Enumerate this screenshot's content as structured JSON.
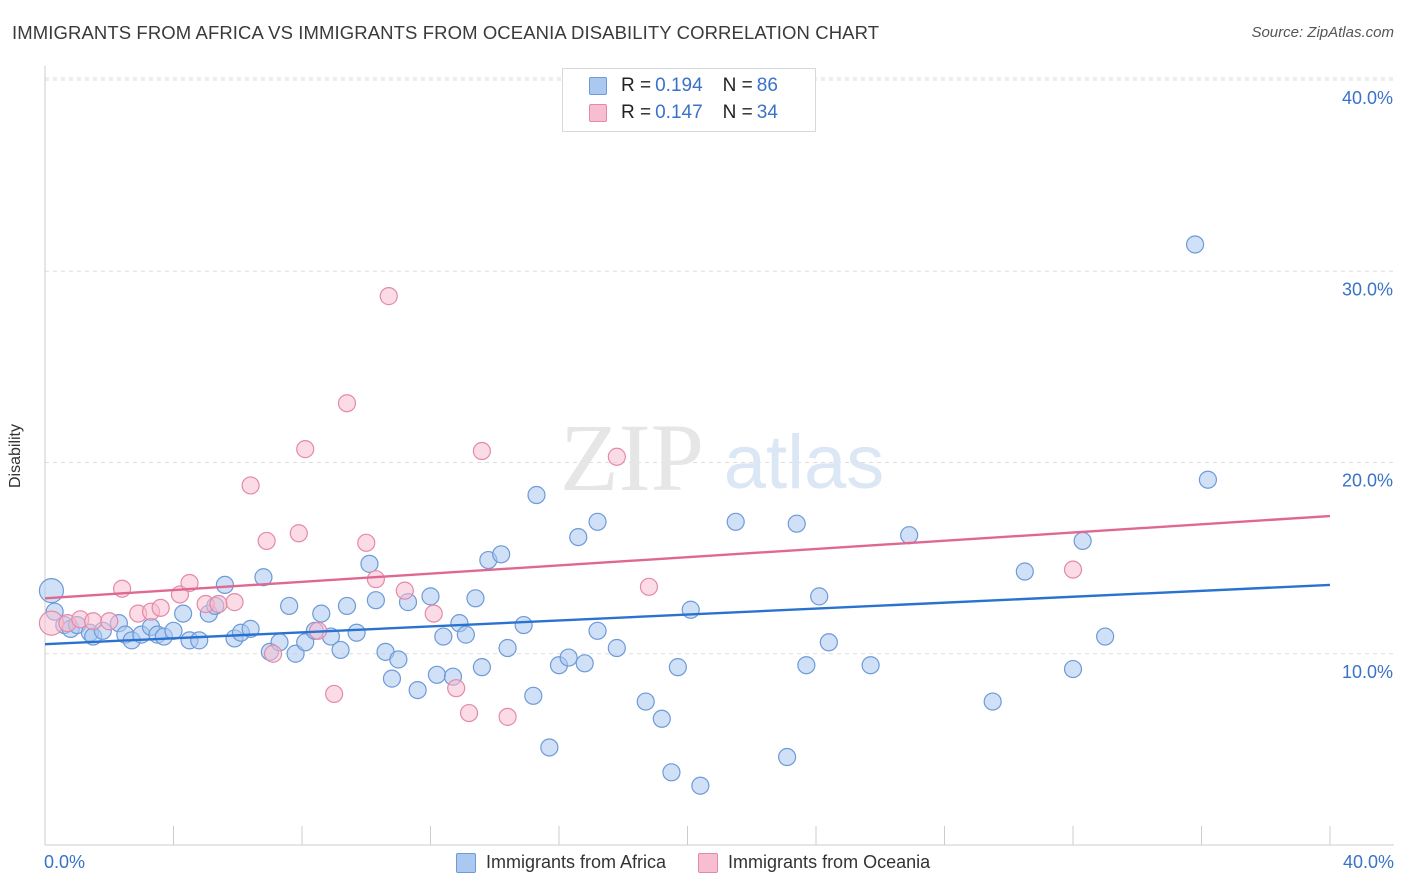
{
  "header": {
    "title": "IMMIGRANTS FROM AFRICA VS IMMIGRANTS FROM OCEANIA DISABILITY CORRELATION CHART",
    "source": "Source: ZipAtlas.com"
  },
  "watermark": {
    "zip": "ZIP",
    "atlas": "atlas"
  },
  "colors": {
    "africa_fill": "#aac8f0",
    "africa_stroke": "#6d9ad8",
    "africa_line": "#2a72d0",
    "oceania_fill": "#f7bdd0",
    "oceania_stroke": "#e48aa8",
    "oceania_line": "#e06890",
    "axis_label": "#3a72c8",
    "grid": "#dddddd"
  },
  "legend_top": [
    {
      "r_label": "R =",
      "r_value": "0.194",
      "n_label": "N =",
      "n_value": "86"
    },
    {
      "r_label": "R =",
      "r_value": "0.147",
      "n_label": "N =",
      "n_value": "34"
    }
  ],
  "legend_bottom": [
    "Immigrants from Africa",
    "Immigrants from Oceania"
  ],
  "chart_data": {
    "type": "scatter",
    "title": "IMMIGRANTS FROM AFRICA VS IMMIGRANTS FROM OCEANIA DISABILITY CORRELATION CHART",
    "ylabel": "Disability",
    "xlabel": "",
    "xlim": [
      0,
      40
    ],
    "ylim": [
      0,
      40.9
    ],
    "x_tick_labels": [
      "0.0%",
      "40.0%"
    ],
    "y_ticks": [
      10,
      20,
      30,
      40
    ],
    "y_tick_labels": [
      "10.0%",
      "20.0%",
      "30.0%",
      "40.0%"
    ],
    "grid": true,
    "legend_position": "top-center",
    "series": [
      {
        "name": "Immigrants from Africa",
        "r": 0.194,
        "n": 86,
        "trend": [
          [
            0,
            10.5
          ],
          [
            40,
            13.6
          ]
        ],
        "points": [
          [
            0.2,
            13.3
          ],
          [
            0.3,
            12.2
          ],
          [
            0.6,
            11.5
          ],
          [
            0.8,
            11.3
          ],
          [
            1.0,
            11.5
          ],
          [
            1.4,
            11.1
          ],
          [
            1.5,
            10.9
          ],
          [
            1.8,
            11.2
          ],
          [
            2.3,
            11.6
          ],
          [
            2.5,
            11.0
          ],
          [
            2.7,
            10.7
          ],
          [
            3.0,
            11.0
          ],
          [
            3.3,
            11.4
          ],
          [
            3.5,
            11.0
          ],
          [
            3.7,
            10.9
          ],
          [
            4.0,
            11.2
          ],
          [
            4.3,
            12.1
          ],
          [
            4.5,
            10.7
          ],
          [
            4.8,
            10.7
          ],
          [
            5.1,
            12.1
          ],
          [
            5.3,
            12.5
          ],
          [
            5.6,
            13.6
          ],
          [
            5.9,
            10.8
          ],
          [
            6.1,
            11.1
          ],
          [
            6.4,
            11.3
          ],
          [
            6.8,
            14.0
          ],
          [
            7.0,
            10.1
          ],
          [
            7.3,
            10.6
          ],
          [
            7.6,
            12.5
          ],
          [
            7.8,
            10.0
          ],
          [
            8.1,
            10.6
          ],
          [
            8.4,
            11.2
          ],
          [
            8.6,
            12.1
          ],
          [
            8.9,
            10.9
          ],
          [
            9.2,
            10.2
          ],
          [
            9.4,
            12.5
          ],
          [
            9.7,
            11.1
          ],
          [
            10.1,
            14.7
          ],
          [
            10.3,
            12.8
          ],
          [
            10.6,
            10.1
          ],
          [
            10.8,
            8.7
          ],
          [
            11.0,
            9.7
          ],
          [
            11.3,
            12.7
          ],
          [
            11.6,
            8.1
          ],
          [
            12.0,
            13.0
          ],
          [
            12.2,
            8.9
          ],
          [
            12.4,
            10.9
          ],
          [
            12.7,
            8.8
          ],
          [
            12.9,
            11.6
          ],
          [
            13.1,
            11.0
          ],
          [
            13.4,
            12.9
          ],
          [
            13.6,
            9.3
          ],
          [
            13.8,
            14.9
          ],
          [
            14.2,
            15.2
          ],
          [
            14.4,
            10.3
          ],
          [
            14.9,
            11.5
          ],
          [
            15.2,
            7.8
          ],
          [
            15.3,
            18.3
          ],
          [
            15.7,
            5.1
          ],
          [
            16.0,
            9.4
          ],
          [
            16.3,
            9.8
          ],
          [
            16.6,
            16.1
          ],
          [
            16.8,
            9.5
          ],
          [
            17.2,
            11.2
          ],
          [
            17.2,
            16.9
          ],
          [
            17.8,
            10.3
          ],
          [
            18.7,
            7.5
          ],
          [
            19.2,
            6.6
          ],
          [
            19.5,
            3.8
          ],
          [
            19.7,
            9.3
          ],
          [
            20.1,
            12.3
          ],
          [
            20.4,
            3.1
          ],
          [
            21.5,
            16.9
          ],
          [
            23.1,
            4.6
          ],
          [
            23.4,
            16.8
          ],
          [
            23.7,
            9.4
          ],
          [
            24.1,
            13.0
          ],
          [
            24.4,
            10.6
          ],
          [
            25.7,
            9.4
          ],
          [
            26.9,
            16.2
          ],
          [
            29.5,
            7.5
          ],
          [
            30.5,
            14.3
          ],
          [
            32.0,
            9.2
          ],
          [
            32.3,
            15.9
          ],
          [
            33.0,
            10.9
          ],
          [
            35.8,
            31.4
          ],
          [
            36.2,
            19.1
          ]
        ]
      },
      {
        "name": "Immigrants from Oceania",
        "r": 0.147,
        "n": 34,
        "trend": [
          [
            0,
            12.9
          ],
          [
            40,
            17.2
          ]
        ],
        "points": [
          [
            0.2,
            11.6
          ],
          [
            0.7,
            11.6
          ],
          [
            1.1,
            11.8
          ],
          [
            1.5,
            11.7
          ],
          [
            2.0,
            11.7
          ],
          [
            2.4,
            13.4
          ],
          [
            2.9,
            12.1
          ],
          [
            3.3,
            12.2
          ],
          [
            3.6,
            12.4
          ],
          [
            4.2,
            13.1
          ],
          [
            4.5,
            13.7
          ],
          [
            5.0,
            12.6
          ],
          [
            5.4,
            12.6
          ],
          [
            5.9,
            12.7
          ],
          [
            6.4,
            18.8
          ],
          [
            6.9,
            15.9
          ],
          [
            7.1,
            10.0
          ],
          [
            7.9,
            16.3
          ],
          [
            8.1,
            20.7
          ],
          [
            8.5,
            11.2
          ],
          [
            9.0,
            7.9
          ],
          [
            9.4,
            23.1
          ],
          [
            10.0,
            15.8
          ],
          [
            10.3,
            13.9
          ],
          [
            10.7,
            28.7
          ],
          [
            11.2,
            13.3
          ],
          [
            12.1,
            12.1
          ],
          [
            12.8,
            8.2
          ],
          [
            13.2,
            6.9
          ],
          [
            13.6,
            20.6
          ],
          [
            14.4,
            6.7
          ],
          [
            17.8,
            20.3
          ],
          [
            18.8,
            13.5
          ],
          [
            32.0,
            14.4
          ]
        ]
      }
    ]
  }
}
